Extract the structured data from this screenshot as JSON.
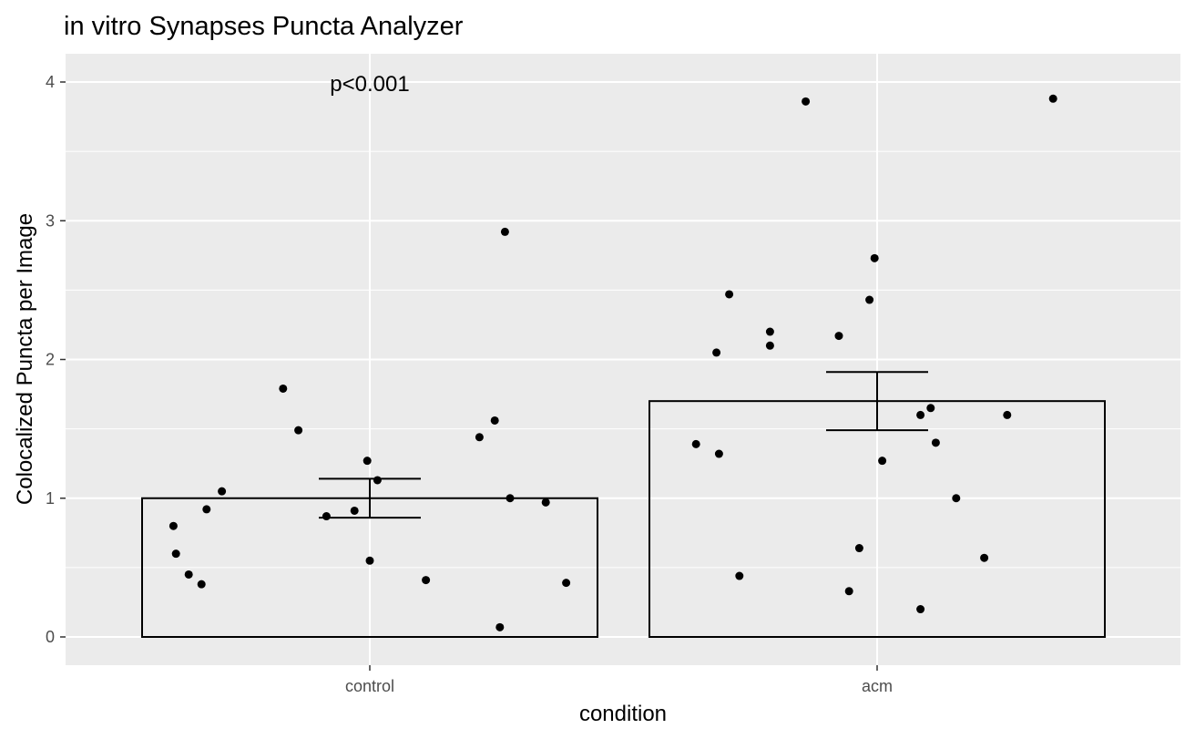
{
  "chart_data": {
    "type": "bar",
    "title": "in vitro Synapses Puncta Analyzer",
    "xlabel": "condition",
    "ylabel": "Colocalized Puncta per Image",
    "ylim": [
      -0.2,
      4.2
    ],
    "y_ticks": [
      "0",
      "1",
      "2",
      "3",
      "4"
    ],
    "categories": [
      "control",
      "acm"
    ],
    "values": [
      1.0,
      1.7
    ],
    "error_bars": [
      {
        "lower": 0.86,
        "upper": 1.14
      },
      {
        "lower": 1.49,
        "upper": 1.91
      }
    ],
    "annotation": "p<0.001",
    "grid": true,
    "points": [
      [
        {
          "x": -0.77,
          "y": 0.8
        },
        {
          "x": -0.76,
          "y": 0.6
        },
        {
          "x": -0.71,
          "y": 0.45
        },
        {
          "x": -0.66,
          "y": 0.38
        },
        {
          "x": -0.64,
          "y": 0.92
        },
        {
          "x": -0.58,
          "y": 1.05
        },
        {
          "x": -0.34,
          "y": 1.79
        },
        {
          "x": -0.28,
          "y": 1.49
        },
        {
          "x": -0.17,
          "y": 0.87
        },
        {
          "x": -0.06,
          "y": 0.91
        },
        {
          "x": -0.01,
          "y": 1.27
        },
        {
          "x": 0.0,
          "y": 0.55
        },
        {
          "x": 0.03,
          "y": 1.13
        },
        {
          "x": 0.22,
          "y": 0.41
        },
        {
          "x": 0.43,
          "y": 1.44
        },
        {
          "x": 0.49,
          "y": 1.56
        },
        {
          "x": 0.51,
          "y": 0.07
        },
        {
          "x": 0.53,
          "y": 2.92
        },
        {
          "x": 0.55,
          "y": 1.0
        },
        {
          "x": 0.69,
          "y": 0.97
        },
        {
          "x": 0.77,
          "y": 0.39
        }
      ],
      [
        {
          "x": -0.71,
          "y": 1.39
        },
        {
          "x": -0.63,
          "y": 2.05
        },
        {
          "x": -0.62,
          "y": 1.32
        },
        {
          "x": -0.58,
          "y": 2.47
        },
        {
          "x": -0.54,
          "y": 0.44
        },
        {
          "x": -0.42,
          "y": 2.2
        },
        {
          "x": -0.42,
          "y": 2.1
        },
        {
          "x": -0.28,
          "y": 3.86
        },
        {
          "x": -0.15,
          "y": 2.17
        },
        {
          "x": -0.11,
          "y": 0.33
        },
        {
          "x": -0.07,
          "y": 0.64
        },
        {
          "x": -0.03,
          "y": 2.43
        },
        {
          "x": -0.01,
          "y": 2.73
        },
        {
          "x": 0.02,
          "y": 1.27
        },
        {
          "x": 0.17,
          "y": 0.2
        },
        {
          "x": 0.17,
          "y": 1.6
        },
        {
          "x": 0.21,
          "y": 1.65
        },
        {
          "x": 0.23,
          "y": 1.4
        },
        {
          "x": 0.31,
          "y": 1.0
        },
        {
          "x": 0.42,
          "y": 0.57
        },
        {
          "x": 0.51,
          "y": 1.6
        },
        {
          "x": 0.69,
          "y": 3.88
        }
      ]
    ],
    "colors": {
      "panel": "#ebebeb",
      "grid": "#ffffff",
      "bar_fill": "none",
      "bar_stroke": "#000000",
      "point": "#000000",
      "tick_label": "#4d4d4d",
      "tick_mark": "#333333"
    }
  }
}
